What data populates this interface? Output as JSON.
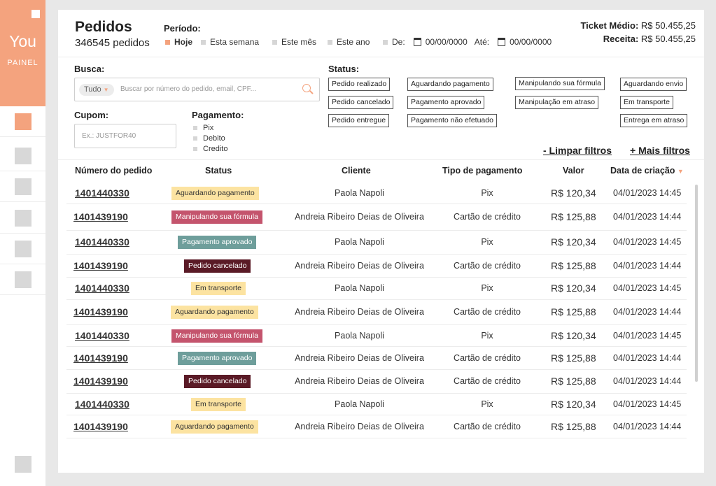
{
  "sidebar": {
    "logo": "You",
    "subtitle": "PAINEL",
    "items": [
      "nav-item-1",
      "nav-item-2",
      "nav-item-3",
      "nav-item-4",
      "nav-item-5",
      "nav-item-6"
    ]
  },
  "header": {
    "title": "Pedidos",
    "count": "346545 pedidos",
    "period_label": "Período:",
    "period_options": [
      "Hoje",
      "Esta semana",
      "Este mês",
      "Este ano"
    ],
    "from_label": "De:",
    "from_value": "00/00/0000",
    "to_label": "Até:",
    "to_value": "00/00/0000",
    "ticket_label": "Ticket Médio:",
    "ticket_value": "R$ 50.455,25",
    "revenue_label": "Receita:",
    "revenue_value": "R$ 50.455,25"
  },
  "filters": {
    "search_label": "Busca:",
    "search_scope": "Tudo",
    "search_placeholder": "Buscar por número do pedido, email, CPF...",
    "coupon_label": "Cupom:",
    "coupon_placeholder": "Ex.: JUSTFOR40",
    "payment_label": "Pagamento:",
    "payment_options": [
      "Pix",
      "Debito",
      "Credito"
    ],
    "status_label": "Status:",
    "status_options": [
      "Pedido realizado",
      "Aguardando pagamento",
      "Manipulando sua fórmula",
      "Aguardando envio",
      "Pedido cancelado",
      "Pagamento aprovado",
      "Manipulação em atraso",
      "Em transporte",
      "Pedido entregue",
      "Pagamento não efetuado",
      "Entrega em atraso"
    ],
    "clear_label": "- Limpar filtros",
    "more_label": "+ Mais filtros"
  },
  "table": {
    "columns": [
      "Número do pedido",
      "Status",
      "Cliente",
      "Tipo de pagamento",
      "Valor",
      "Data de criação"
    ],
    "sort_indicator": "▼",
    "rows": [
      {
        "order": "1401440330",
        "status": "Aguardando pagamento",
        "client": "Paola Napoli",
        "payment": "Pix",
        "value": "R$ 120,34",
        "date": "04/01/2023 14:45"
      },
      {
        "order": "1401439190",
        "status": "Manipulando sua fórmula",
        "client": "Andreia Ribeiro Deias de Oliveira",
        "payment": "Cartão de crédito",
        "value": "R$ 125,88",
        "date": "04/01/2023 14:44"
      },
      {
        "order": "1401440330",
        "status": "Pagamento aprovado",
        "client": "Paola Napoli",
        "payment": "Pix",
        "value": "R$ 120,34",
        "date": "04/01/2023 14:45"
      },
      {
        "order": "1401439190",
        "status": "Pedido cancelado",
        "client": "Andreia Ribeiro Deias de Oliveira",
        "payment": "Cartão de crédito",
        "value": "R$ 125,88",
        "date": "04/01/2023 14:44"
      },
      {
        "order": "1401440330",
        "status": "Em transporte",
        "client": "Paola Napoli",
        "payment": "Pix",
        "value": "R$ 120,34",
        "date": "04/01/2023 14:45"
      },
      {
        "order": "1401439190",
        "status": "Aguardando pagamento",
        "client": "Andreia Ribeiro Deias de Oliveira",
        "payment": "Cartão de crédito",
        "value": "R$ 125,88",
        "date": "04/01/2023 14:44"
      },
      {
        "order": "1401440330",
        "status": "Manipulando sua fórmula",
        "client": "Paola Napoli",
        "payment": "Pix",
        "value": "R$ 120,34",
        "date": "04/01/2023 14:45"
      },
      {
        "order": "1401439190",
        "status": "Pagamento aprovado",
        "client": "Andreia Ribeiro Deias de Oliveira",
        "payment": "Cartão de crédito",
        "value": "R$ 125,88",
        "date": "04/01/2023 14:44"
      },
      {
        "order": "1401439190",
        "status": "Pedido cancelado",
        "client": "Andreia Ribeiro Deias de Oliveira",
        "payment": "Cartão de crédito",
        "value": "R$ 125,88",
        "date": "04/01/2023 14:44"
      },
      {
        "order": "1401440330",
        "status": "Em transporte",
        "client": "Paola Napoli",
        "payment": "Pix",
        "value": "R$ 120,34",
        "date": "04/01/2023 14:45"
      },
      {
        "order": "1401439190",
        "status": "Aguardando pagamento",
        "client": "Andreia Ribeiro Deias de Oliveira",
        "payment": "Cartão de crédito",
        "value": "R$ 125,88",
        "date": "04/01/2023 14:44"
      }
    ]
  },
  "status_colors": {
    "Aguardando pagamento": {
      "bg": "#fce3a1",
      "fg": "#333333"
    },
    "Manipulando sua fórmula": {
      "bg": "#c4546d",
      "fg": "#ffffff"
    },
    "Pagamento aprovado": {
      "bg": "#6e9e9b",
      "fg": "#ffffff"
    },
    "Pedido cancelado": {
      "bg": "#5a1a26",
      "fg": "#ffffff"
    },
    "Em transporte": {
      "bg": "#fce3a1",
      "fg": "#333333"
    }
  },
  "colors": {
    "accent": "#f4a37e"
  }
}
